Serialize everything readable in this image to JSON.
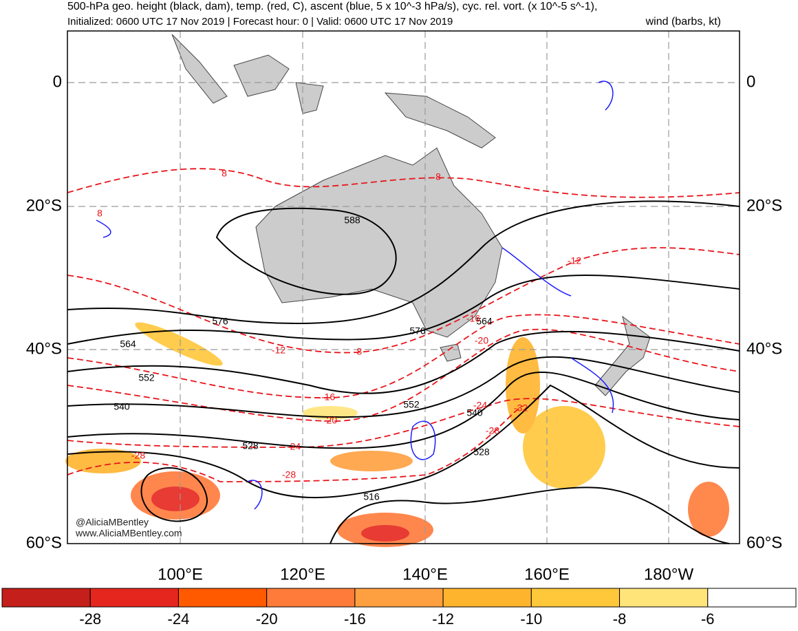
{
  "header": {
    "title": "500-hPa geo. height (black, dam), temp. (red, C), ascent (blue, 5 x 10^-3 hPa/s), cyc. rel. vort. (x 10^-5 s^-1),",
    "subtitle": "Initialized: 0600 UTC 17 Nov 2019 | Forecast hour: 0 | Valid: 0600 UTC 17 Nov 2019",
    "wind_note": "wind (barbs, kt)"
  },
  "map": {
    "lat_labels": [
      "0",
      "20°S",
      "40°S",
      "60°S"
    ],
    "lon_labels": [
      "100°E",
      "120°E",
      "140°E",
      "160°E",
      "180°W"
    ],
    "height_contour_labels": [
      588,
      576,
      576,
      564,
      564,
      552,
      552,
      540,
      540,
      528,
      528,
      516
    ],
    "temperature_contour_labels": [
      8,
      8,
      8,
      -8,
      -12,
      -12,
      -16,
      -16,
      -20,
      -20,
      -24,
      -24,
      -28,
      -28,
      -28,
      -32
    ],
    "watermark": [
      "@AliciaMBentley",
      "www.AliciaMBentley.com"
    ]
  },
  "colorbar": {
    "colors": [
      "#c41f1a",
      "#e5261f",
      "#ff5a00",
      "#ff7b3a",
      "#ffa040",
      "#ffb42e",
      "#ffc73a",
      "#ffe47a",
      "#ffffff"
    ],
    "labels": [
      -28,
      -24,
      -20,
      -16,
      -12,
      -10,
      -8,
      -6
    ]
  }
}
